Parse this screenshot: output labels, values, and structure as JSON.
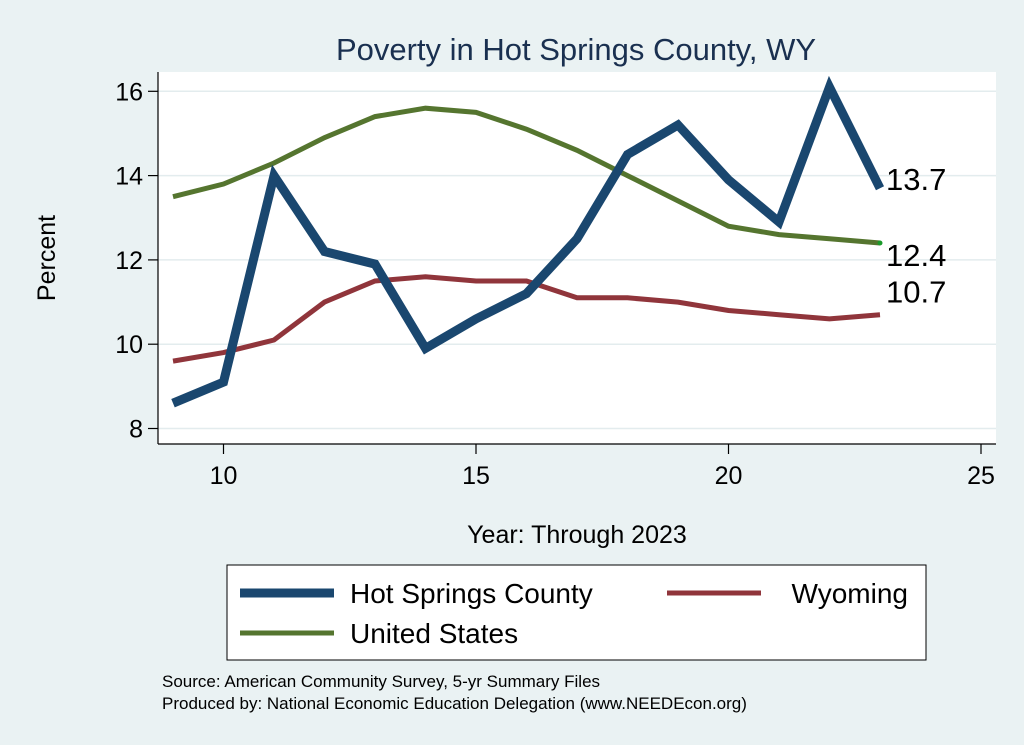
{
  "chart_data": {
    "type": "line",
    "title": "Poverty in Hot Springs County, WY",
    "xlabel": "Year: Through 2023",
    "ylabel": "Percent",
    "xlim": [
      9,
      25
    ],
    "ylim": [
      8,
      16
    ],
    "xticks": [
      "10",
      "15",
      "20",
      "25"
    ],
    "yticks": [
      "8",
      "10",
      "12",
      "14",
      "16"
    ],
    "grid": true,
    "legend_placement": "bottom",
    "x": [
      9,
      10,
      11,
      12,
      13,
      14,
      15,
      16,
      17,
      18,
      19,
      20,
      21,
      22,
      23
    ],
    "series": [
      {
        "name": "Hot Springs County",
        "color": "#1a476f",
        "values": [
          8.6,
          9.1,
          14.0,
          12.2,
          11.9,
          9.9,
          10.6,
          11.2,
          12.5,
          14.5,
          15.2,
          13.9,
          12.9,
          16.1,
          13.7
        ],
        "end_label": "13.7"
      },
      {
        "name": "Wyoming",
        "color": "#90353b",
        "values": [
          9.6,
          9.8,
          10.1,
          11.0,
          11.5,
          11.6,
          11.5,
          11.5,
          11.1,
          11.1,
          11.0,
          10.8,
          10.7,
          10.6,
          10.7
        ],
        "end_label": "10.7"
      },
      {
        "name": "United States",
        "color": "#55752f",
        "values": [
          13.5,
          13.8,
          14.3,
          14.9,
          15.4,
          15.6,
          15.5,
          15.1,
          14.6,
          14.0,
          13.4,
          12.8,
          12.6,
          12.5,
          12.4
        ],
        "end_label": "12.4"
      }
    ]
  },
  "notes": {
    "source": "Source: American Community Survey, 5-yr Summary Files",
    "produced": "Produced by: National Economic Education Delegation (www.NEEDEcon.org)"
  }
}
